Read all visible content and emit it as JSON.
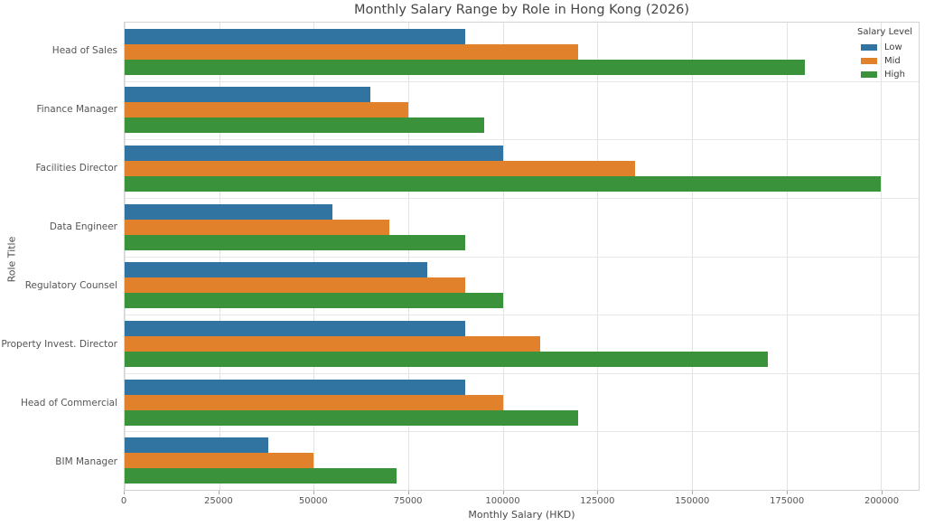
{
  "chart_data": {
    "type": "bar",
    "orientation": "horizontal",
    "title": "Monthly Salary Range by Role in Hong Kong (2026)",
    "xlabel": "Monthly Salary (HKD)",
    "ylabel": "Role Title",
    "categories": [
      "Head of Sales",
      "Finance Manager",
      "Facilities Director",
      "Data Engineer",
      "Regulatory Counsel",
      "Property Invest. Director",
      "Head of Commercial",
      "BIM Manager"
    ],
    "series": [
      {
        "name": "Low",
        "color": "#3274a1",
        "values": [
          90000,
          65000,
          100000,
          55000,
          80000,
          90000,
          90000,
          38000
        ]
      },
      {
        "name": "Mid",
        "color": "#e1812c",
        "values": [
          120000,
          75000,
          135000,
          70000,
          90000,
          110000,
          100000,
          50000
        ]
      },
      {
        "name": "High",
        "color": "#3a923a",
        "values": [
          180000,
          95000,
          200000,
          90000,
          100000,
          170000,
          120000,
          72000
        ]
      }
    ],
    "x_ticks": [
      {
        "value": 0,
        "label": "0"
      },
      {
        "value": 25000,
        "label": "25000"
      },
      {
        "value": 50000,
        "label": "50000"
      },
      {
        "value": 75000,
        "label": "75000"
      },
      {
        "value": 100000,
        "label": "100000"
      },
      {
        "value": 125000,
        "label": "125000"
      },
      {
        "value": 150000,
        "label": "150000"
      },
      {
        "value": 175000,
        "label": "175000"
      },
      {
        "value": 200000,
        "label": "200000"
      }
    ],
    "xlim": [
      0,
      210000
    ],
    "grid": true,
    "legend_title": "Salary Level",
    "legend_position": "upper right"
  },
  "style": {
    "grid_color": "#e3e3e3",
    "row_separator_color": "#e7e7e7",
    "border_color": "#d3d3d3",
    "tick_color": "#555555",
    "title_color": "#464646",
    "background": "#ffffff"
  }
}
